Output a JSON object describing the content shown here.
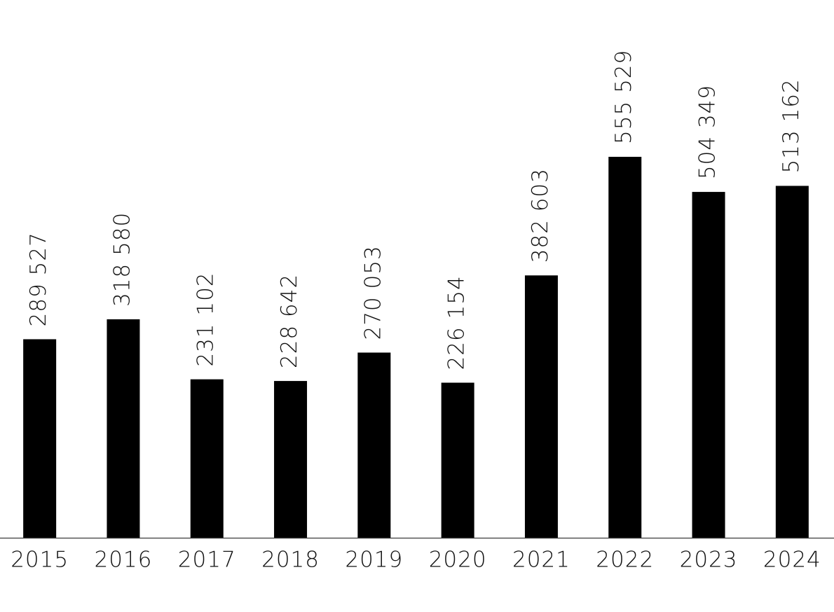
{
  "chart_data": {
    "type": "bar",
    "categories": [
      "2015",
      "2016",
      "2017",
      "2018",
      "2019",
      "2020",
      "2021",
      "2022",
      "2023",
      "2024"
    ],
    "values": [
      289527,
      318580,
      231102,
      228642,
      270053,
      226154,
      382603,
      555529,
      504349,
      513162
    ],
    "value_labels": [
      "289 527",
      "318 580",
      "231 102",
      "228 642",
      "270 053",
      "226 154",
      "382 603",
      "555 529",
      "504 349",
      "513 162"
    ],
    "color": "#000000",
    "ylim": [
      0,
      600000
    ]
  }
}
